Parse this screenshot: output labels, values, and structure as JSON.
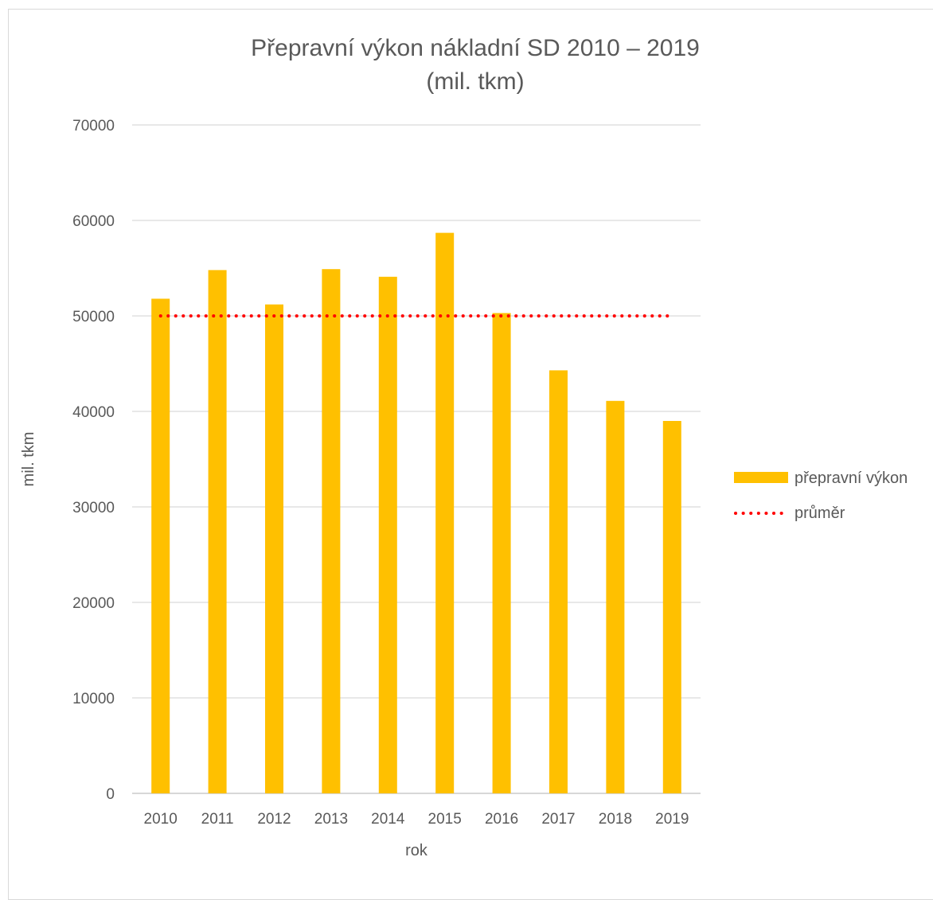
{
  "chart_data": {
    "type": "bar",
    "title_line1": "Přepravní výkon nákladní SD 2010 – 2019",
    "title_line2": "(mil. tkm)",
    "xlabel": "rok",
    "ylabel": "mil. tkm",
    "categories": [
      "2010",
      "2011",
      "2012",
      "2013",
      "2014",
      "2015",
      "2016",
      "2017",
      "2018",
      "2019"
    ],
    "series": [
      {
        "name": "přepravní výkon",
        "type": "bar",
        "color": "#FFC000",
        "values": [
          51800,
          54800,
          51200,
          54900,
          54100,
          58700,
          50300,
          44300,
          41100,
          39000
        ]
      },
      {
        "name": "průměr",
        "type": "line",
        "style": "dotted",
        "color": "#FF0000",
        "values": [
          50000,
          50000,
          50000,
          50000,
          50000,
          50000,
          50000,
          50000,
          50000,
          50000
        ]
      }
    ],
    "ylim": [
      0,
      70000
    ],
    "yticks": [
      0,
      10000,
      20000,
      30000,
      40000,
      50000,
      60000,
      70000
    ],
    "grid": true,
    "legend_position": "right"
  }
}
